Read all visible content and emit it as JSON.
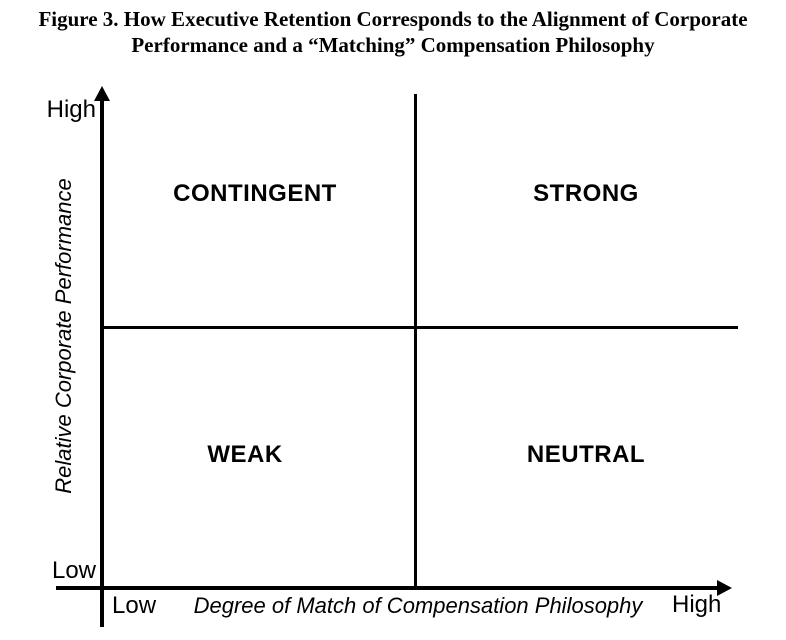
{
  "figure": {
    "title_line1": "Figure 3. How Executive Retention Corresponds to the Alignment of Corporate",
    "title_line2": "Performance and a “Matching” Compensation Philosophy"
  },
  "y_axis": {
    "label": "Relative Corporate Performance",
    "tick_high": "High",
    "tick_low": "Low"
  },
  "x_axis": {
    "label": "Degree of Match of Compensation Philosophy",
    "tick_low": "Low",
    "tick_high": "High"
  },
  "quadrants": {
    "top_left": "CONTINGENT",
    "top_right": "STRONG",
    "bottom_left": "WEAK",
    "bottom_right": "NEUTRAL"
  },
  "colors": {
    "line": "#000000",
    "text": "#000000",
    "background": "#ffffff"
  }
}
